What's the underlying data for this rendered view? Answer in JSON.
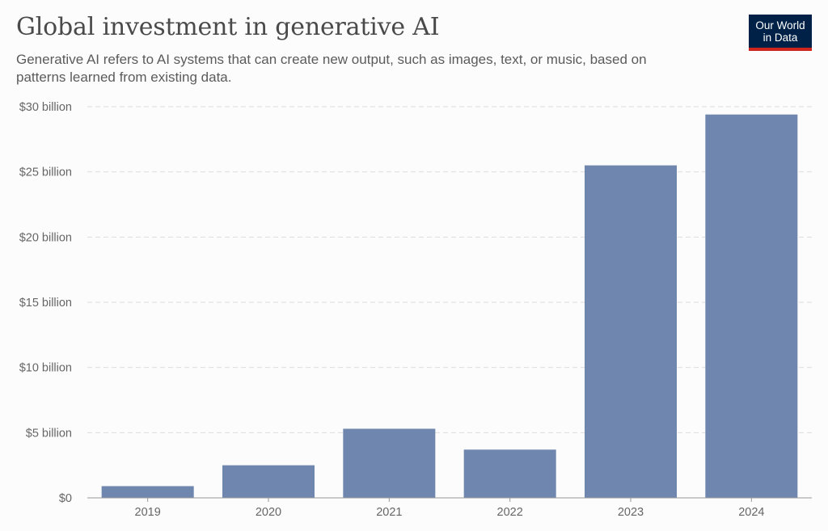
{
  "header": {
    "title": "Global investment in generative AI",
    "subtitle": "Generative AI refers to AI systems that can create new output, such as images, text, or music, based on patterns learned from existing data."
  },
  "logo": {
    "line1": "Our World",
    "line2": "in Data"
  },
  "colors": {
    "bar": "#6f86ae",
    "grid": "#dddddd",
    "axis": "#999999",
    "logo_bg": "#002147",
    "logo_accent": "#ce261e"
  },
  "chart_data": {
    "type": "bar",
    "title": "Global investment in generative AI",
    "categories": [
      "2019",
      "2020",
      "2021",
      "2022",
      "2023",
      "2024"
    ],
    "values": [
      0.9,
      2.5,
      5.3,
      3.7,
      25.5,
      29.4
    ],
    "unit": "billion USD",
    "ylim": [
      0,
      30
    ],
    "yticks": [
      {
        "value": 0,
        "label": "$0"
      },
      {
        "value": 5,
        "label": "$5 billion"
      },
      {
        "value": 10,
        "label": "$10 billion"
      },
      {
        "value": 15,
        "label": "$15 billion"
      },
      {
        "value": 20,
        "label": "$20 billion"
      },
      {
        "value": 25,
        "label": "$25 billion"
      },
      {
        "value": 30,
        "label": "$30 billion"
      }
    ],
    "xlabel": "",
    "ylabel": "",
    "grid": true
  }
}
